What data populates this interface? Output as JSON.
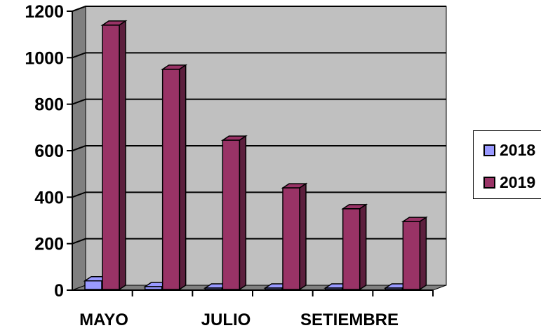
{
  "chart_data": {
    "type": "bar",
    "style": "3d-clustered-column",
    "categories": [
      "MAYO",
      "",
      "JULIO",
      "",
      "SETIEMBRE",
      ""
    ],
    "series": [
      {
        "name": "2018",
        "values": [
          40,
          15,
          8,
          0,
          0,
          0
        ],
        "color": "#9999ff"
      },
      {
        "name": "2019",
        "values": [
          1140,
          950,
          645,
          440,
          350,
          295
        ],
        "color": "#993366"
      }
    ],
    "ylim": [
      0,
      1200
    ],
    "yticks": [
      "0",
      "200",
      "400",
      "600",
      "800",
      "1000",
      "1200"
    ],
    "grid": true,
    "legend_position": "right",
    "colors": {
      "plot_wall": "#c0c0c0",
      "floor": "#808080"
    }
  }
}
